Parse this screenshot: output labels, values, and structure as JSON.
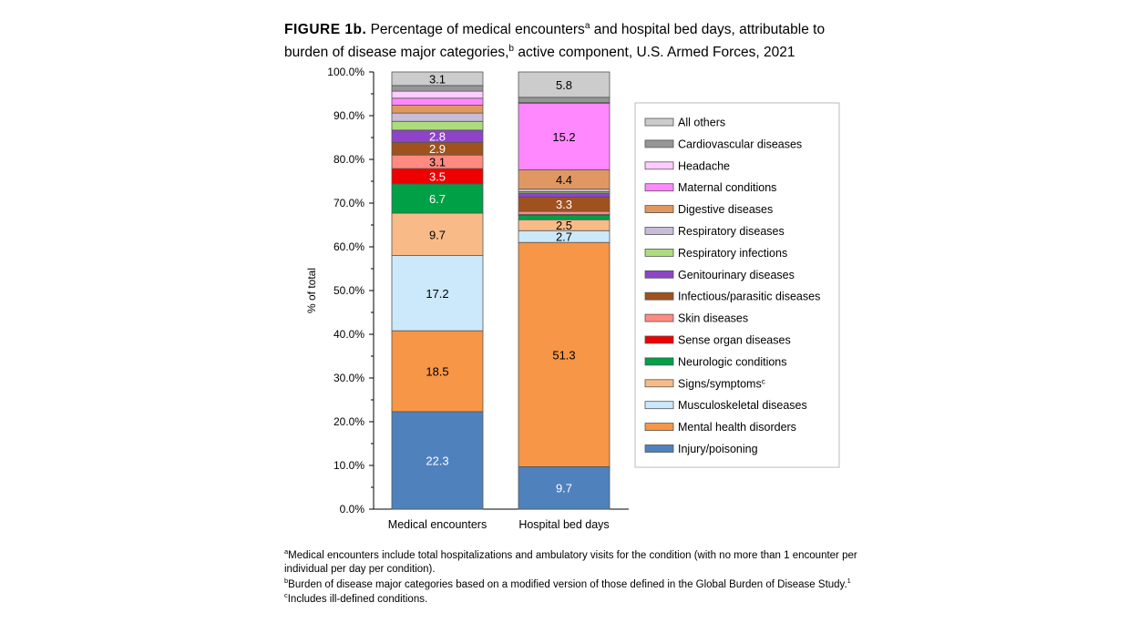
{
  "title": {
    "figure_label": "FIGURE 1b.",
    "text": "Percentage of medical encounters",
    "sup_a": "a",
    "text2": " and hospital bed days, attributable to burden of disease major categories,",
    "sup_b": "b",
    "text3": " active component, U.S. Armed Forces, 2021"
  },
  "chart_data": {
    "type": "stacked-bar",
    "ylabel": "% of total",
    "ylim": [
      0,
      100
    ],
    "yticks": [
      "0.0%",
      "10.0%",
      "20.0%",
      "30.0%",
      "40.0%",
      "50.0%",
      "60.0%",
      "70.0%",
      "80.0%",
      "90.0%",
      "100.0%"
    ],
    "categories": [
      "Medical encounters",
      "Hospital bed days"
    ],
    "legend_position": "right",
    "series": [
      {
        "name": "Injury/poisoning",
        "color": "#4f81bd",
        "values": [
          22.3,
          9.7
        ],
        "labels": [
          "22.3",
          "9.7"
        ]
      },
      {
        "name": "Mental health disorders",
        "color": "#f79646",
        "values": [
          18.5,
          51.3
        ],
        "labels": [
          "18.5",
          "51.3"
        ]
      },
      {
        "name": "Musculoskeletal diseases",
        "color": "#cce8fb",
        "values": [
          17.2,
          2.7
        ],
        "labels": [
          "17.2",
          "2.7"
        ]
      },
      {
        "name": "Signs/symptoms",
        "sup": "c",
        "color": "#f8bb88",
        "values": [
          9.7,
          2.5
        ],
        "labels": [
          "9.7",
          "2.5"
        ]
      },
      {
        "name": "Neurologic conditions",
        "color": "#00a046",
        "values": [
          6.7,
          1.0
        ],
        "labels": [
          "6.7",
          ""
        ]
      },
      {
        "name": "Sense organ diseases",
        "color": "#ee0000",
        "values": [
          3.5,
          0.2
        ],
        "labels": [
          "3.5",
          ""
        ]
      },
      {
        "name": "Skin diseases",
        "color": "#ff8a80",
        "values": [
          3.1,
          0.7
        ],
        "labels": [
          "3.1",
          ""
        ]
      },
      {
        "name": "Infectious/parasitic diseases",
        "color": "#a0521e",
        "values": [
          2.9,
          3.3
        ],
        "labels": [
          "2.9",
          "3.3"
        ]
      },
      {
        "name": "Genitourinary diseases",
        "color": "#8e44c8",
        "values": [
          2.8,
          0.9
        ],
        "labels": [
          "2.8",
          ""
        ]
      },
      {
        "name": "Respiratory infections",
        "color": "#addc7c",
        "values": [
          2.0,
          0.3
        ],
        "labels": [
          "",
          ""
        ]
      },
      {
        "name": "Respiratory diseases",
        "color": "#c8bcd8",
        "values": [
          1.9,
          0.6
        ],
        "labels": [
          "",
          ""
        ]
      },
      {
        "name": "Digestive diseases",
        "color": "#e09862",
        "values": [
          1.8,
          4.4
        ],
        "labels": [
          "",
          "4.4"
        ]
      },
      {
        "name": "Maternal conditions",
        "color": "#ff88ff",
        "values": [
          1.6,
          15.2
        ],
        "labels": [
          "",
          "15.2"
        ]
      },
      {
        "name": "Headache",
        "color": "#ffccff",
        "values": [
          1.6,
          0.2
        ],
        "labels": [
          "",
          ""
        ]
      },
      {
        "name": "Cardiovascular diseases",
        "color": "#969696",
        "values": [
          1.3,
          1.2
        ],
        "labels": [
          "",
          ""
        ]
      },
      {
        "name": "All others",
        "color": "#cccccc",
        "values": [
          3.1,
          5.8
        ],
        "labels": [
          "3.1",
          "5.8"
        ]
      }
    ]
  },
  "footnotes": [
    {
      "sup": "a",
      "text": "Medical encounters include total hospitalizations and ambulatory visits for the condition (with no more than 1 encounter per individual per day per condition)."
    },
    {
      "sup": "b",
      "text": "Burden of disease major categories based on a modified version of those defined in the Global Burden of Disease Study.",
      "trail": "1"
    },
    {
      "sup": "c",
      "text": "Includes ill-defined conditions."
    }
  ]
}
